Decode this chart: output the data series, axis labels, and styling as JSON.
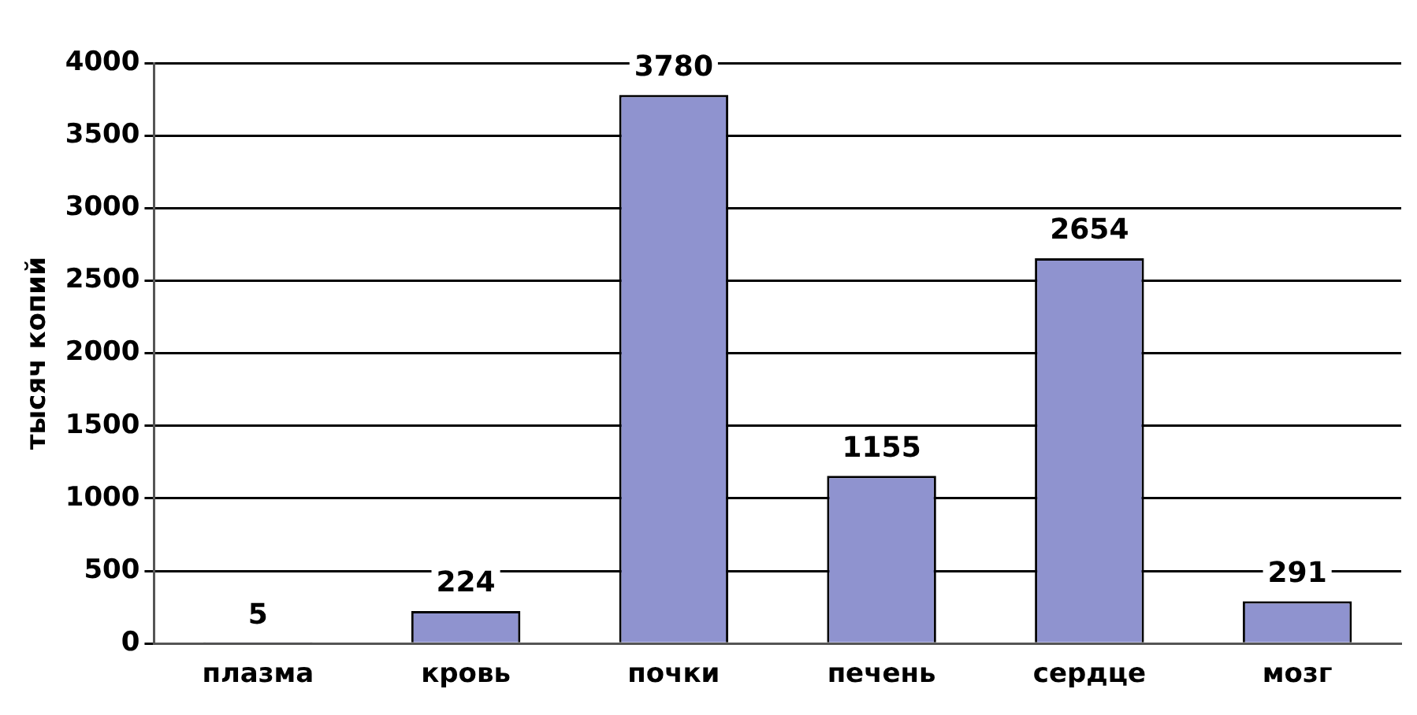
{
  "chart_data": {
    "type": "bar",
    "ylabel": "тысяч копий",
    "categories": [
      "плазма",
      "кровь",
      "почки",
      "печень",
      "сердце",
      "мозг"
    ],
    "values": [
      5,
      224,
      3780,
      1155,
      2654,
      291
    ],
    "color": "#8f93cf",
    "ylim": [
      0,
      4000
    ],
    "yticks": [
      0,
      500,
      1000,
      1500,
      2000,
      2500,
      3000,
      3500,
      4000
    ],
    "grid": "y",
    "data_labels": true
  }
}
